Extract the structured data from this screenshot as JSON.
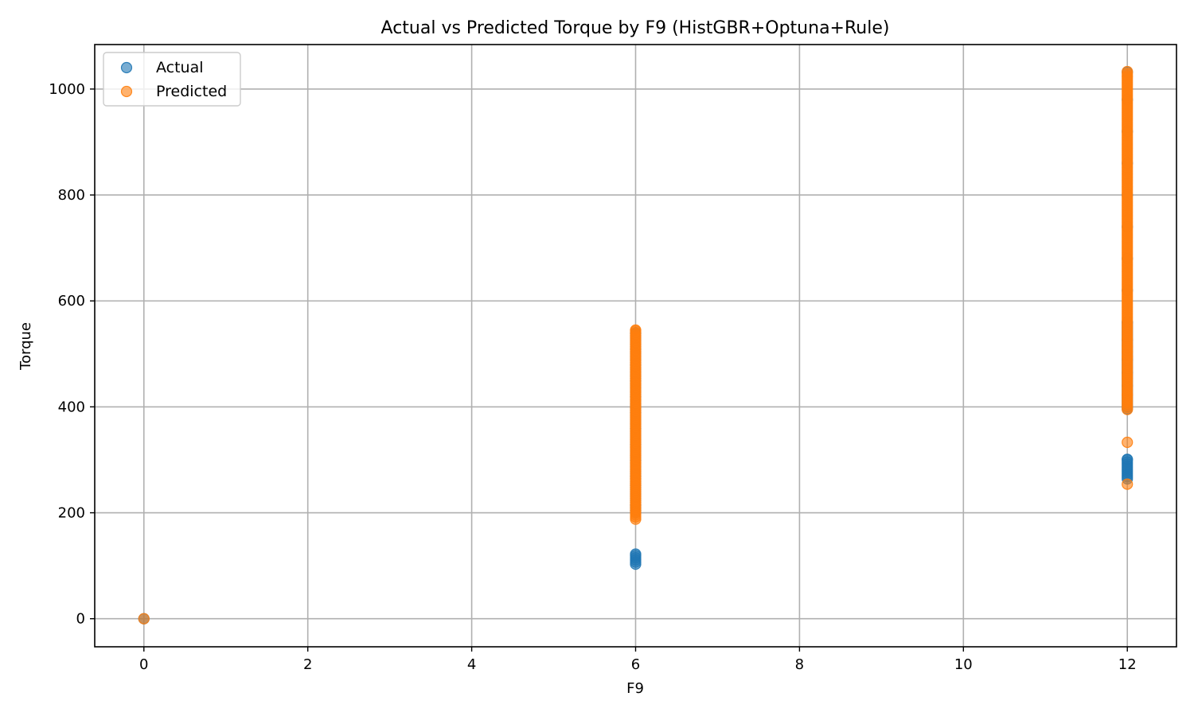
{
  "chart_data": {
    "type": "scatter",
    "title": "Actual vs Predicted Torque by F9 (HistGBR+Optuna+Rule)",
    "xlabel": "F9",
    "ylabel": "Torque",
    "xlim": [
      -0.6,
      12.6
    ],
    "ylim": [
      -53,
      1084
    ],
    "xticks": [
      0,
      2,
      4,
      6,
      8,
      10,
      12
    ],
    "yticks": [
      0,
      200,
      400,
      600,
      800,
      1000
    ],
    "grid": true,
    "legend_position": "top-left",
    "series": [
      {
        "name": "Actual",
        "color": "#1f77b4",
        "points": [
          {
            "x": 0,
            "y": 0
          },
          {
            "x": 6,
            "y": 103
          },
          {
            "x": 6,
            "y": 122
          },
          {
            "x": 6,
            "y": 200
          },
          {
            "x": 6,
            "y": 205
          },
          {
            "x": 6,
            "y": 210
          },
          {
            "x": 6,
            "y": 215
          },
          {
            "x": 6,
            "y": 252
          },
          {
            "x": 6,
            "y": 270
          },
          {
            "x": 6,
            "y": 300
          },
          {
            "x": 6,
            "y": 330
          },
          {
            "x": 6,
            "y": 360
          },
          {
            "x": 6,
            "y": 390
          },
          {
            "x": 6,
            "y": 420
          },
          {
            "x": 6,
            "y": 450
          },
          {
            "x": 6,
            "y": 480
          },
          {
            "x": 6,
            "y": 510
          },
          {
            "x": 6,
            "y": 540
          },
          {
            "x": 12,
            "y": 264
          },
          {
            "x": 12,
            "y": 301
          },
          {
            "x": 12,
            "y": 396
          },
          {
            "x": 12,
            "y": 423
          },
          {
            "x": 12,
            "y": 440
          },
          {
            "x": 12,
            "y": 448
          },
          {
            "x": 12,
            "y": 465
          },
          {
            "x": 12,
            "y": 490
          },
          {
            "x": 12,
            "y": 527
          },
          {
            "x": 12,
            "y": 560
          },
          {
            "x": 12,
            "y": 620
          },
          {
            "x": 12,
            "y": 680
          },
          {
            "x": 12,
            "y": 740
          },
          {
            "x": 12,
            "y": 800
          },
          {
            "x": 12,
            "y": 860
          },
          {
            "x": 12,
            "y": 920
          },
          {
            "x": 12,
            "y": 980
          },
          {
            "x": 12,
            "y": 1032
          }
        ]
      },
      {
        "name": "Predicted",
        "color": "#ff7f0e",
        "points": [
          {
            "x": 0,
            "y": 0
          },
          {
            "x": 6,
            "y": 188
          },
          {
            "x": 6,
            "y": 212
          },
          {
            "x": 6,
            "y": 220
          },
          {
            "x": 6,
            "y": 255
          },
          {
            "x": 6,
            "y": 265
          },
          {
            "x": 6,
            "y": 280
          },
          {
            "x": 6,
            "y": 295
          },
          {
            "x": 6,
            "y": 310
          },
          {
            "x": 6,
            "y": 325
          },
          {
            "x": 6,
            "y": 340
          },
          {
            "x": 6,
            "y": 355
          },
          {
            "x": 6,
            "y": 370
          },
          {
            "x": 6,
            "y": 385
          },
          {
            "x": 6,
            "y": 400
          },
          {
            "x": 6,
            "y": 415
          },
          {
            "x": 6,
            "y": 430
          },
          {
            "x": 6,
            "y": 445
          },
          {
            "x": 6,
            "y": 460
          },
          {
            "x": 6,
            "y": 475
          },
          {
            "x": 6,
            "y": 490
          },
          {
            "x": 6,
            "y": 505
          },
          {
            "x": 6,
            "y": 520
          },
          {
            "x": 6,
            "y": 535
          },
          {
            "x": 6,
            "y": 545
          },
          {
            "x": 12,
            "y": 254
          },
          {
            "x": 12,
            "y": 333
          },
          {
            "x": 12,
            "y": 395
          },
          {
            "x": 12,
            "y": 424
          },
          {
            "x": 12,
            "y": 455
          },
          {
            "x": 12,
            "y": 462
          },
          {
            "x": 12,
            "y": 478
          },
          {
            "x": 12,
            "y": 495
          },
          {
            "x": 12,
            "y": 505
          },
          {
            "x": 12,
            "y": 515
          },
          {
            "x": 12,
            "y": 530
          },
          {
            "x": 12,
            "y": 550
          },
          {
            "x": 12,
            "y": 570
          },
          {
            "x": 12,
            "y": 590
          },
          {
            "x": 12,
            "y": 610
          },
          {
            "x": 12,
            "y": 630
          },
          {
            "x": 12,
            "y": 650
          },
          {
            "x": 12,
            "y": 670
          },
          {
            "x": 12,
            "y": 690
          },
          {
            "x": 12,
            "y": 710
          },
          {
            "x": 12,
            "y": 730
          },
          {
            "x": 12,
            "y": 750
          },
          {
            "x": 12,
            "y": 770
          },
          {
            "x": 12,
            "y": 790
          },
          {
            "x": 12,
            "y": 810
          },
          {
            "x": 12,
            "y": 830
          },
          {
            "x": 12,
            "y": 850
          },
          {
            "x": 12,
            "y": 870
          },
          {
            "x": 12,
            "y": 890
          },
          {
            "x": 12,
            "y": 910
          },
          {
            "x": 12,
            "y": 930
          },
          {
            "x": 12,
            "y": 950
          },
          {
            "x": 12,
            "y": 970
          },
          {
            "x": 12,
            "y": 990
          },
          {
            "x": 12,
            "y": 1010
          },
          {
            "x": 12,
            "y": 1025
          },
          {
            "x": 12,
            "y": 1033
          }
        ]
      }
    ]
  }
}
